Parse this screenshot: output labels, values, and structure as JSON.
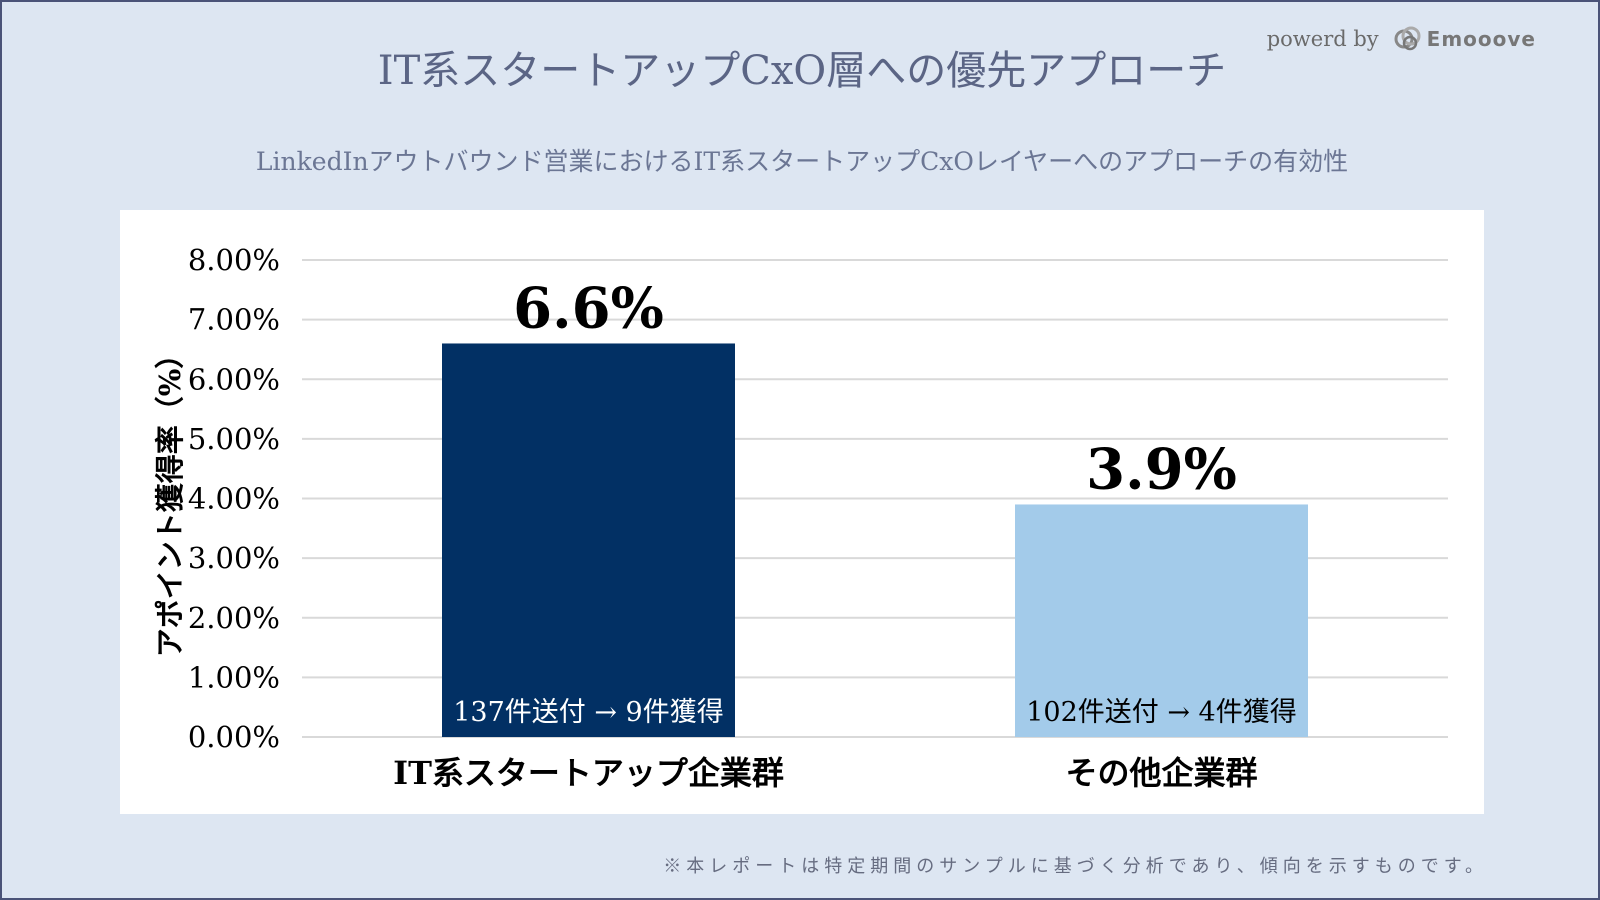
{
  "title": "IT系スタートアップCxO層への優先アプローチ",
  "powered_by": "powerd by",
  "logo_text": "Emooove",
  "subtitle": "LinkedInアウトバウンド営業におけるIT系スタートアップCxOレイヤーへのアプローチの有効性",
  "footnote": "※本レポートは特定期間のサンプルに基づく分析であり、傾向を示すものです。",
  "chart_data": {
    "type": "bar",
    "ylabel": "アポイント獲得率（%）",
    "ylim": [
      0,
      8
    ],
    "yticks": [
      "0.00%",
      "1.00%",
      "2.00%",
      "3.00%",
      "4.00%",
      "5.00%",
      "6.00%",
      "7.00%",
      "8.00%"
    ],
    "grid": true,
    "categories": [
      "IT系スタートアップ企業群",
      "その他企業群"
    ],
    "values": [
      6.6,
      3.9
    ],
    "data_labels": [
      "6.6%",
      "3.9%"
    ],
    "bar_annotations": [
      "137件送付 → 9件獲得",
      "102件送付 → 4件獲得"
    ],
    "colors": [
      "#023064",
      "#a3cbea"
    ]
  }
}
